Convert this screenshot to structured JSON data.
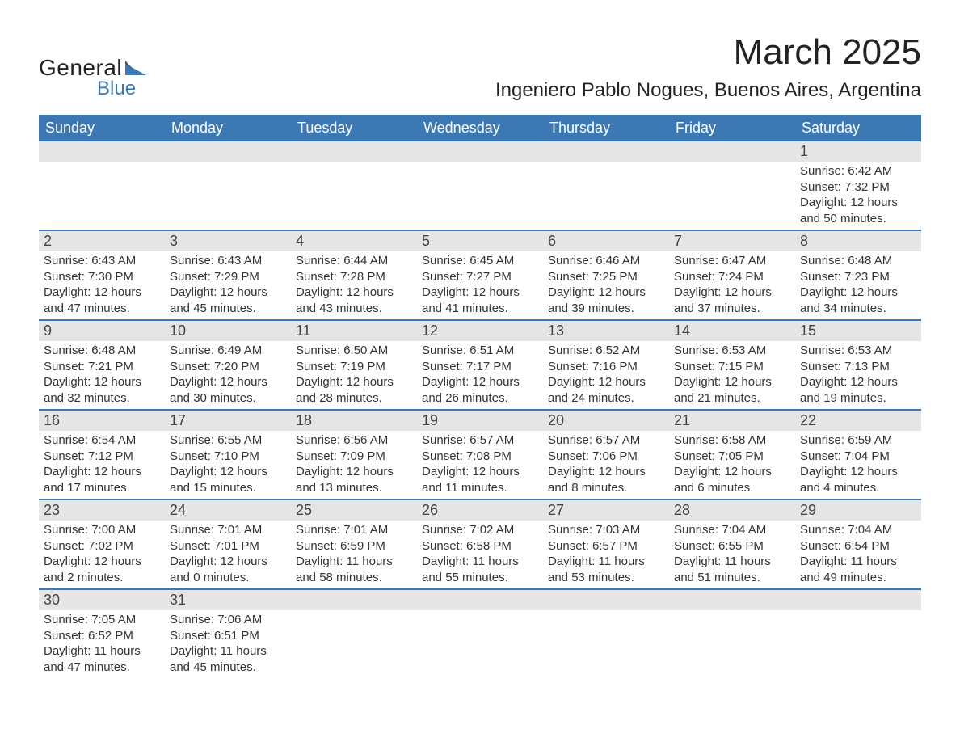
{
  "brand": {
    "name1": "General",
    "name2": "Blue",
    "flag_color": "#3c78b4"
  },
  "title": "March 2025",
  "location": "Ingeniero Pablo Nogues, Buenos Aires, Argentina",
  "colors": {
    "header_bg": "#3c78b4",
    "header_text": "#ffffff",
    "daynum_bg": "#e5e5e5",
    "border": "#3c78b4",
    "body_text": "#333333",
    "page_bg": "#ffffff"
  },
  "typography": {
    "title_fontsize": 44,
    "location_fontsize": 24,
    "header_fontsize": 18,
    "daynum_fontsize": 18,
    "detail_fontsize": 15
  },
  "weekdays": [
    "Sunday",
    "Monday",
    "Tuesday",
    "Wednesday",
    "Thursday",
    "Friday",
    "Saturday"
  ],
  "weeks": [
    [
      null,
      null,
      null,
      null,
      null,
      null,
      {
        "day": "1",
        "sunrise": "Sunrise: 6:42 AM",
        "sunset": "Sunset: 7:32 PM",
        "daylight1": "Daylight: 12 hours",
        "daylight2": "and 50 minutes."
      }
    ],
    [
      {
        "day": "2",
        "sunrise": "Sunrise: 6:43 AM",
        "sunset": "Sunset: 7:30 PM",
        "daylight1": "Daylight: 12 hours",
        "daylight2": "and 47 minutes."
      },
      {
        "day": "3",
        "sunrise": "Sunrise: 6:43 AM",
        "sunset": "Sunset: 7:29 PM",
        "daylight1": "Daylight: 12 hours",
        "daylight2": "and 45 minutes."
      },
      {
        "day": "4",
        "sunrise": "Sunrise: 6:44 AM",
        "sunset": "Sunset: 7:28 PM",
        "daylight1": "Daylight: 12 hours",
        "daylight2": "and 43 minutes."
      },
      {
        "day": "5",
        "sunrise": "Sunrise: 6:45 AM",
        "sunset": "Sunset: 7:27 PM",
        "daylight1": "Daylight: 12 hours",
        "daylight2": "and 41 minutes."
      },
      {
        "day": "6",
        "sunrise": "Sunrise: 6:46 AM",
        "sunset": "Sunset: 7:25 PM",
        "daylight1": "Daylight: 12 hours",
        "daylight2": "and 39 minutes."
      },
      {
        "day": "7",
        "sunrise": "Sunrise: 6:47 AM",
        "sunset": "Sunset: 7:24 PM",
        "daylight1": "Daylight: 12 hours",
        "daylight2": "and 37 minutes."
      },
      {
        "day": "8",
        "sunrise": "Sunrise: 6:48 AM",
        "sunset": "Sunset: 7:23 PM",
        "daylight1": "Daylight: 12 hours",
        "daylight2": "and 34 minutes."
      }
    ],
    [
      {
        "day": "9",
        "sunrise": "Sunrise: 6:48 AM",
        "sunset": "Sunset: 7:21 PM",
        "daylight1": "Daylight: 12 hours",
        "daylight2": "and 32 minutes."
      },
      {
        "day": "10",
        "sunrise": "Sunrise: 6:49 AM",
        "sunset": "Sunset: 7:20 PM",
        "daylight1": "Daylight: 12 hours",
        "daylight2": "and 30 minutes."
      },
      {
        "day": "11",
        "sunrise": "Sunrise: 6:50 AM",
        "sunset": "Sunset: 7:19 PM",
        "daylight1": "Daylight: 12 hours",
        "daylight2": "and 28 minutes."
      },
      {
        "day": "12",
        "sunrise": "Sunrise: 6:51 AM",
        "sunset": "Sunset: 7:17 PM",
        "daylight1": "Daylight: 12 hours",
        "daylight2": "and 26 minutes."
      },
      {
        "day": "13",
        "sunrise": "Sunrise: 6:52 AM",
        "sunset": "Sunset: 7:16 PM",
        "daylight1": "Daylight: 12 hours",
        "daylight2": "and 24 minutes."
      },
      {
        "day": "14",
        "sunrise": "Sunrise: 6:53 AM",
        "sunset": "Sunset: 7:15 PM",
        "daylight1": "Daylight: 12 hours",
        "daylight2": "and 21 minutes."
      },
      {
        "day": "15",
        "sunrise": "Sunrise: 6:53 AM",
        "sunset": "Sunset: 7:13 PM",
        "daylight1": "Daylight: 12 hours",
        "daylight2": "and 19 minutes."
      }
    ],
    [
      {
        "day": "16",
        "sunrise": "Sunrise: 6:54 AM",
        "sunset": "Sunset: 7:12 PM",
        "daylight1": "Daylight: 12 hours",
        "daylight2": "and 17 minutes."
      },
      {
        "day": "17",
        "sunrise": "Sunrise: 6:55 AM",
        "sunset": "Sunset: 7:10 PM",
        "daylight1": "Daylight: 12 hours",
        "daylight2": "and 15 minutes."
      },
      {
        "day": "18",
        "sunrise": "Sunrise: 6:56 AM",
        "sunset": "Sunset: 7:09 PM",
        "daylight1": "Daylight: 12 hours",
        "daylight2": "and 13 minutes."
      },
      {
        "day": "19",
        "sunrise": "Sunrise: 6:57 AM",
        "sunset": "Sunset: 7:08 PM",
        "daylight1": "Daylight: 12 hours",
        "daylight2": "and 11 minutes."
      },
      {
        "day": "20",
        "sunrise": "Sunrise: 6:57 AM",
        "sunset": "Sunset: 7:06 PM",
        "daylight1": "Daylight: 12 hours",
        "daylight2": "and 8 minutes."
      },
      {
        "day": "21",
        "sunrise": "Sunrise: 6:58 AM",
        "sunset": "Sunset: 7:05 PM",
        "daylight1": "Daylight: 12 hours",
        "daylight2": "and 6 minutes."
      },
      {
        "day": "22",
        "sunrise": "Sunrise: 6:59 AM",
        "sunset": "Sunset: 7:04 PM",
        "daylight1": "Daylight: 12 hours",
        "daylight2": "and 4 minutes."
      }
    ],
    [
      {
        "day": "23",
        "sunrise": "Sunrise: 7:00 AM",
        "sunset": "Sunset: 7:02 PM",
        "daylight1": "Daylight: 12 hours",
        "daylight2": "and 2 minutes."
      },
      {
        "day": "24",
        "sunrise": "Sunrise: 7:01 AM",
        "sunset": "Sunset: 7:01 PM",
        "daylight1": "Daylight: 12 hours",
        "daylight2": "and 0 minutes."
      },
      {
        "day": "25",
        "sunrise": "Sunrise: 7:01 AM",
        "sunset": "Sunset: 6:59 PM",
        "daylight1": "Daylight: 11 hours",
        "daylight2": "and 58 minutes."
      },
      {
        "day": "26",
        "sunrise": "Sunrise: 7:02 AM",
        "sunset": "Sunset: 6:58 PM",
        "daylight1": "Daylight: 11 hours",
        "daylight2": "and 55 minutes."
      },
      {
        "day": "27",
        "sunrise": "Sunrise: 7:03 AM",
        "sunset": "Sunset: 6:57 PM",
        "daylight1": "Daylight: 11 hours",
        "daylight2": "and 53 minutes."
      },
      {
        "day": "28",
        "sunrise": "Sunrise: 7:04 AM",
        "sunset": "Sunset: 6:55 PM",
        "daylight1": "Daylight: 11 hours",
        "daylight2": "and 51 minutes."
      },
      {
        "day": "29",
        "sunrise": "Sunrise: 7:04 AM",
        "sunset": "Sunset: 6:54 PM",
        "daylight1": "Daylight: 11 hours",
        "daylight2": "and 49 minutes."
      }
    ],
    [
      {
        "day": "30",
        "sunrise": "Sunrise: 7:05 AM",
        "sunset": "Sunset: 6:52 PM",
        "daylight1": "Daylight: 11 hours",
        "daylight2": "and 47 minutes."
      },
      {
        "day": "31",
        "sunrise": "Sunrise: 7:06 AM",
        "sunset": "Sunset: 6:51 PM",
        "daylight1": "Daylight: 11 hours",
        "daylight2": "and 45 minutes."
      },
      null,
      null,
      null,
      null,
      null
    ]
  ]
}
